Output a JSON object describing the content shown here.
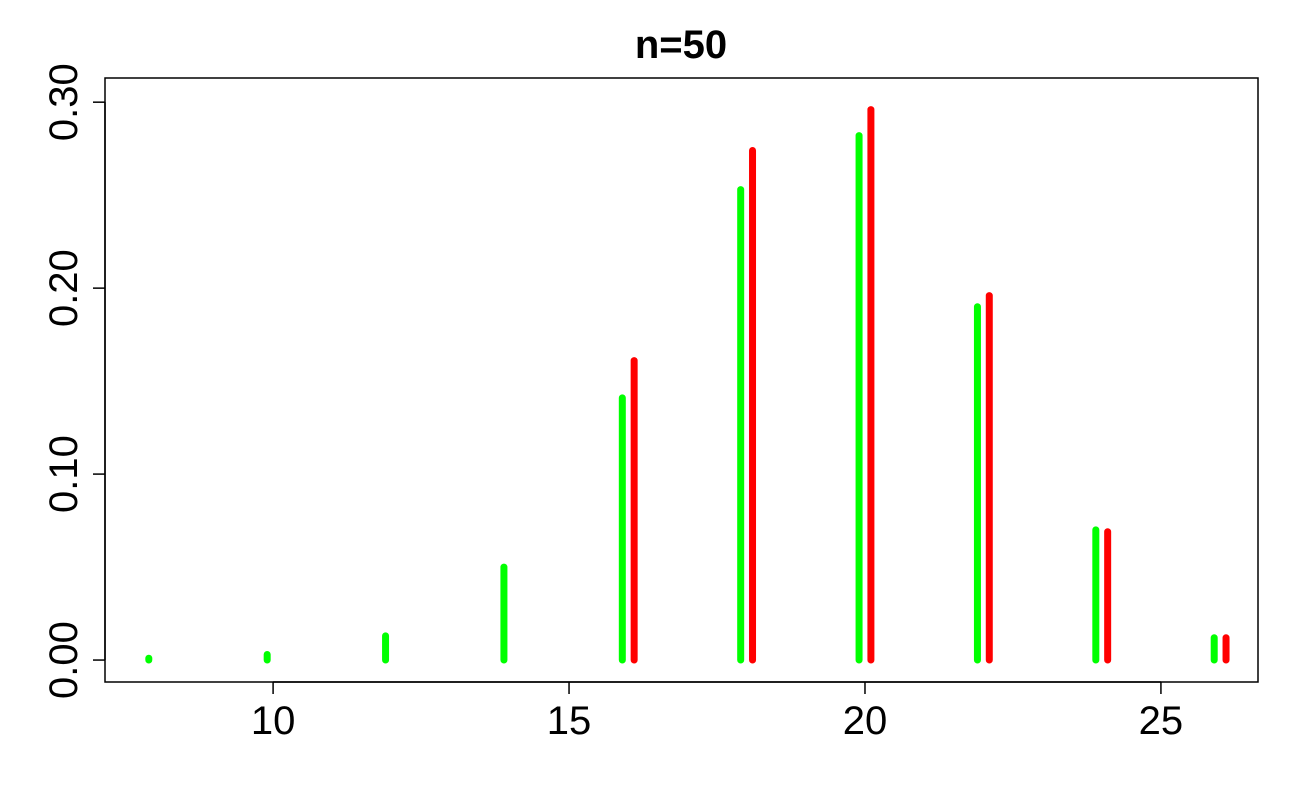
{
  "chart_data": {
    "type": "stem",
    "title": "n=50",
    "series": [
      {
        "color": "#00ff00",
        "x": [
          7.9,
          9.9,
          11.9,
          13.9,
          15.9,
          17.9,
          19.9,
          21.9,
          23.9,
          25.9
        ],
        "values": [
          0.001,
          0.003,
          0.013,
          0.05,
          0.141,
          0.253,
          0.282,
          0.19,
          0.07,
          0.012
        ]
      },
      {
        "color": "#ff0000",
        "x": [
          16.1,
          18.1,
          20.1,
          22.1,
          24.1,
          26.1
        ],
        "values": [
          0.161,
          0.274,
          0.296,
          0.196,
          0.069,
          0.012
        ]
      }
    ],
    "xlim": [
      7.16,
      26.64
    ],
    "ylim": [
      -0.0118,
      0.313
    ],
    "xticks": [
      10,
      15,
      20,
      25
    ],
    "yticks": [
      {
        "value": 0,
        "label": "0.00"
      },
      {
        "value": 0.1,
        "label": "0.10"
      },
      {
        "value": 0.2,
        "label": "0.20"
      },
      {
        "value": 0.3,
        "label": "0.30"
      }
    ]
  }
}
